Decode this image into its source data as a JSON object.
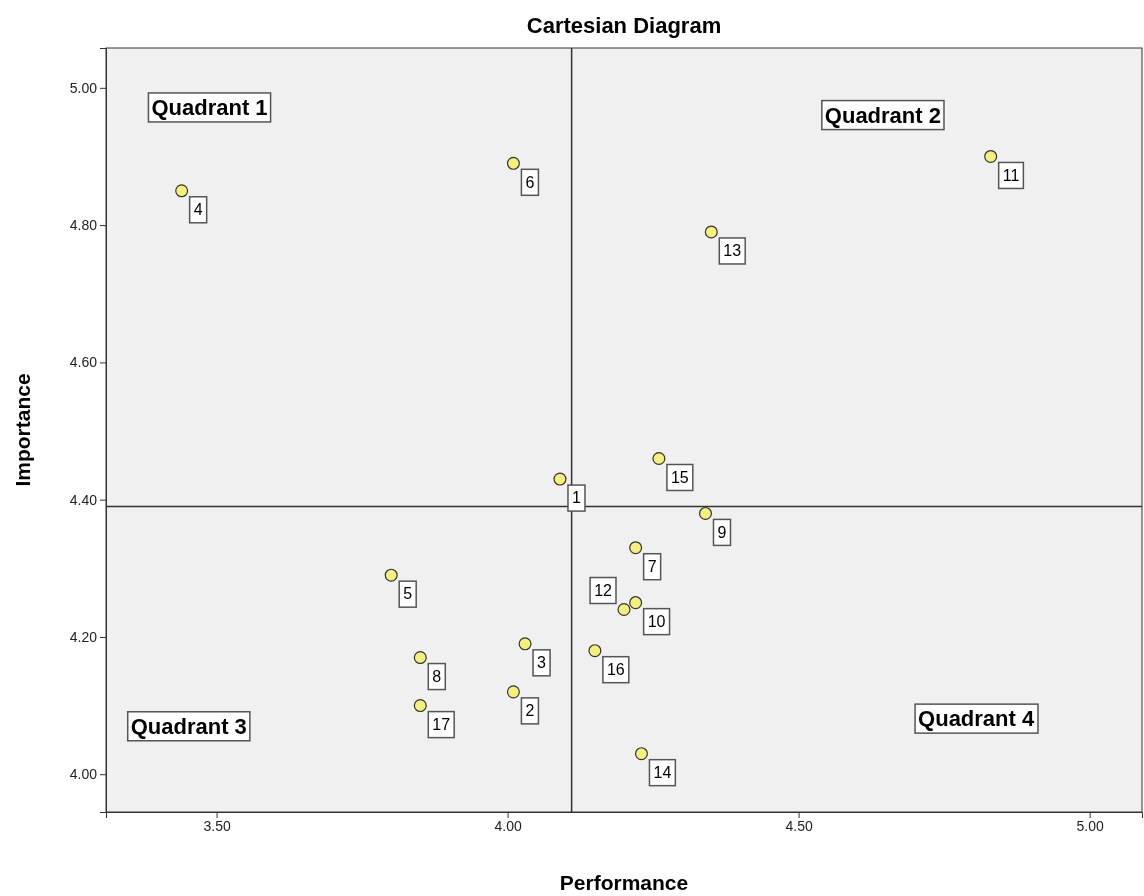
{
  "chart_data": {
    "type": "scatter",
    "title": "Cartesian Diagram",
    "xlabel": "Performance",
    "ylabel": "Importance",
    "xlim": [
      3.31,
      5.09
    ],
    "ylim": [
      3.945,
      5.058
    ],
    "xticks": [
      {
        "value": 3.5,
        "label": "3.50"
      },
      {
        "value": 4,
        "label": "4.00"
      },
      {
        "value": 4.5,
        "label": "4.50"
      },
      {
        "value": 5,
        "label": "5.00"
      }
    ],
    "yticks": [
      {
        "value": 4,
        "label": "4.00"
      },
      {
        "value": 4.2,
        "label": "4.20"
      },
      {
        "value": 4.4,
        "label": "4.40"
      },
      {
        "value": 4.6,
        "label": "4.60"
      },
      {
        "value": 4.8,
        "label": "4.80"
      },
      {
        "value": 5,
        "label": "5.00"
      }
    ],
    "grid": false,
    "marker": "circle",
    "series": [
      {
        "color": "#f5f07a",
        "x": [
          4.09,
          4.01,
          4.03,
          3.44,
          3.8,
          4.01,
          4.22,
          3.85,
          4.34,
          4.22,
          4.83,
          4.2,
          4.35,
          4.23,
          4.26,
          4.15,
          3.85
        ],
        "values": [
          4.43,
          4.12,
          4.19,
          4.85,
          4.29,
          4.89,
          4.33,
          4.17,
          4.38,
          4.25,
          4.9,
          4.24,
          4.79,
          4.03,
          4.46,
          4.18,
          4.1
        ]
      }
    ],
    "ref_lines": [
      {
        "axis": "x",
        "value": 4.11
      },
      {
        "axis": "y",
        "value": 4.39
      }
    ],
    "annotations": [
      "Quadrant 1",
      "Quadrant 2",
      "Quadrant 3",
      "Quadrant 4",
      {
        "text": "1",
        "x": 4.09,
        "y": 4.43
      },
      {
        "text": "2",
        "x": 4.01,
        "y": 4.12
      },
      {
        "text": "3",
        "x": 4.03,
        "y": 4.19
      },
      {
        "text": "4",
        "x": 3.44,
        "y": 4.85
      },
      {
        "text": "5",
        "x": 3.8,
        "y": 4.29
      },
      {
        "text": "6",
        "x": 4.01,
        "y": 4.89
      },
      {
        "text": "7",
        "x": 4.22,
        "y": 4.33
      },
      {
        "text": "8",
        "x": 3.85,
        "y": 4.17
      },
      {
        "text": "9",
        "x": 4.34,
        "y": 4.38
      },
      {
        "text": "10",
        "x": 4.22,
        "y": 4.25
      },
      {
        "text": "11",
        "x": 4.83,
        "y": 4.9
      },
      {
        "text": "12",
        "x": 4.2,
        "y": 4.24
      },
      {
        "text": "13",
        "x": 4.35,
        "y": 4.79
      },
      {
        "text": "14",
        "x": 4.23,
        "y": 4.03
      },
      {
        "text": "15",
        "x": 4.26,
        "y": 4.46
      },
      {
        "text": "16",
        "x": 4.15,
        "y": 4.18
      },
      {
        "text": "17",
        "x": 3.85,
        "y": 4.1
      }
    ]
  }
}
